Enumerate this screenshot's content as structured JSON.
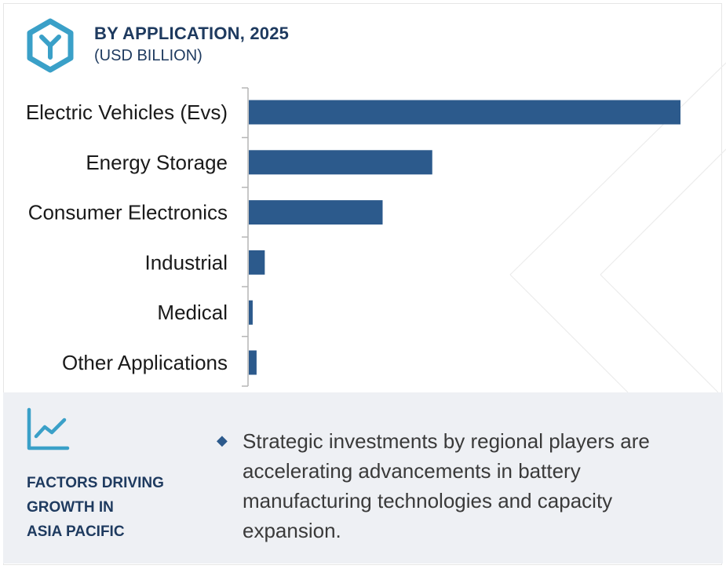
{
  "header": {
    "title": "BY APPLICATION, 2025",
    "subtitle": "(USD BILLION)"
  },
  "chart_data": {
    "type": "bar",
    "orientation": "horizontal",
    "title": "BY APPLICATION, 2025",
    "subtitle": "(USD BILLION)",
    "categories": [
      "Electric Vehicles (Evs)",
      "Energy Storage",
      "Consumer Electronics",
      "Industrial",
      "Medical",
      "Other Applications"
    ],
    "values": [
      100,
      42.5,
      31,
      3.7,
      0.9,
      1.8
    ],
    "xlim": [
      0,
      100
    ],
    "bar_color": "#2c5a8c",
    "grid": false,
    "legend": "none"
  },
  "factors": {
    "heading": "FACTORS DRIVING\nGROWTH IN\nASIA PACIFIC",
    "icon": "trend-chart-icon",
    "bullet_icon": "diamond-bullet-icon",
    "text": "Strategic investments by regional players are accelerating advancements in battery manufacturing technologies and capacity expansion."
  },
  "colors": {
    "accent": "#2c5a8c",
    "logo": "#3aa0c8",
    "heading": "#1e3a5f",
    "panel_bg": "#eef0f4"
  }
}
